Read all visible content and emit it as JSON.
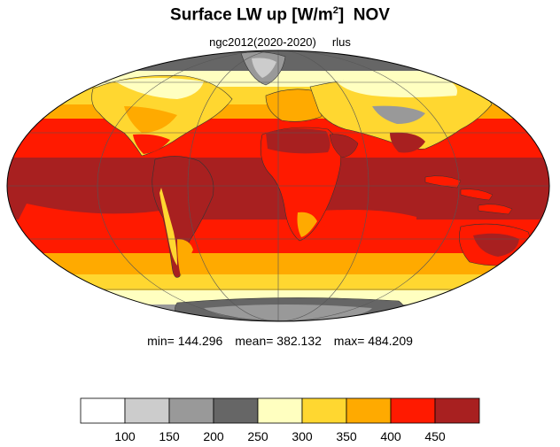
{
  "title": {
    "main": "Surface LW up [W/m",
    "sup": "2",
    "close": "]",
    "month": "NOV"
  },
  "subtitle": {
    "model": "ngc2012(2020-2020)",
    "variable": "rlus"
  },
  "stats": {
    "min": "min= 144.296",
    "mean": "mean= 382.132",
    "max": "max= 484.209"
  },
  "map": {
    "projection": "mollweide",
    "graticule": true
  },
  "colorbar": {
    "colors": [
      "#ffffff",
      "#cccccc",
      "#999999",
      "#666666",
      "#ffffc0",
      "#ffd730",
      "#ffaa00",
      "#ff1a00",
      "#a82020"
    ],
    "tick_labels": [
      "100",
      "150",
      "200",
      "250",
      "300",
      "350",
      "400",
      "450"
    ]
  }
}
